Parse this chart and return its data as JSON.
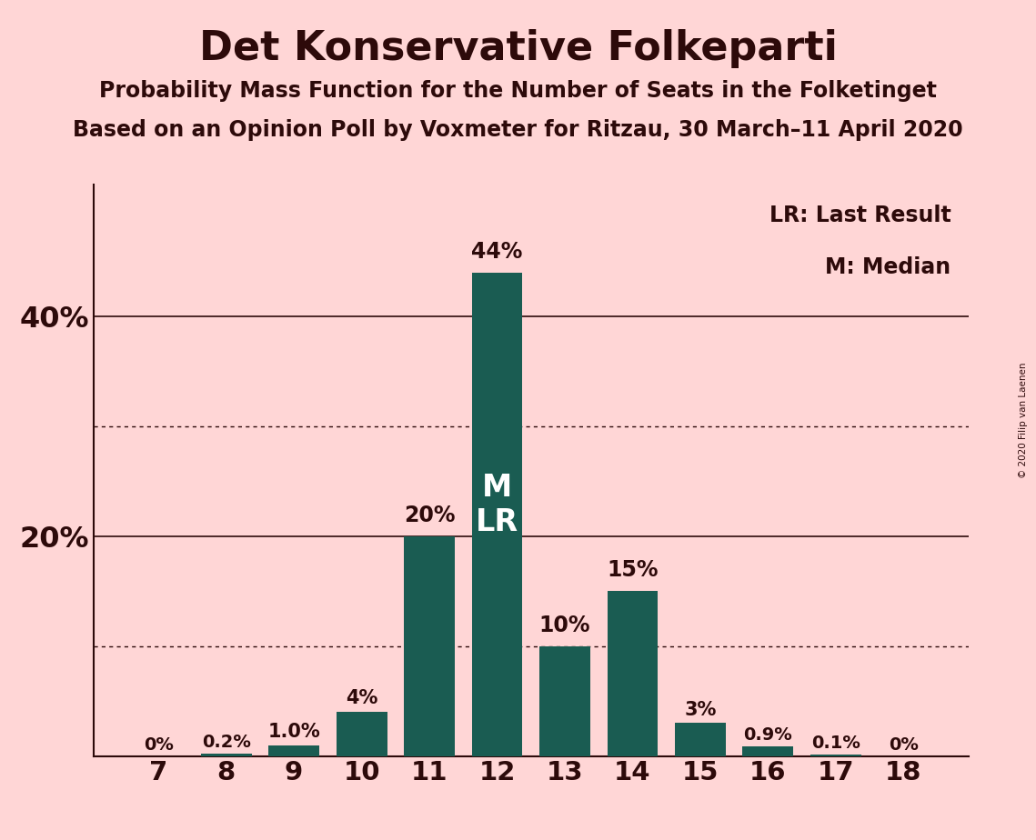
{
  "title": "Det Konservative Folkeparti",
  "subtitle1": "Probability Mass Function for the Number of Seats in the Folketinget",
  "subtitle2": "Based on an Opinion Poll by Voxmeter for Ritzau, 30 March–11 April 2020",
  "watermark": "© 2020 Filip van Laenen",
  "seats": [
    7,
    8,
    9,
    10,
    11,
    12,
    13,
    14,
    15,
    16,
    17,
    18
  ],
  "probabilities": [
    0.0,
    0.2,
    1.0,
    4.0,
    20.0,
    44.0,
    10.0,
    15.0,
    3.0,
    0.9,
    0.1,
    0.0
  ],
  "bar_labels": [
    "0%",
    "0.2%",
    "1.0%",
    "4%",
    "20%",
    "44%",
    "10%",
    "15%",
    "3%",
    "0.9%",
    "0.1%",
    "0%"
  ],
  "bar_color": "#1a5c52",
  "background_color": "#ffd6d6",
  "label_color": "#2d0a0a",
  "median_seat": 12,
  "last_result_seat": 12,
  "ylim": [
    0,
    52
  ],
  "solid_gridlines": [
    20,
    40
  ],
  "dotted_gridlines": [
    10,
    30
  ],
  "legend_lr": "LR: Last Result",
  "legend_m": "M: Median",
  "ytick_labels": [
    "",
    "20%",
    "40%"
  ],
  "ytick_values": [
    0,
    20,
    40
  ]
}
